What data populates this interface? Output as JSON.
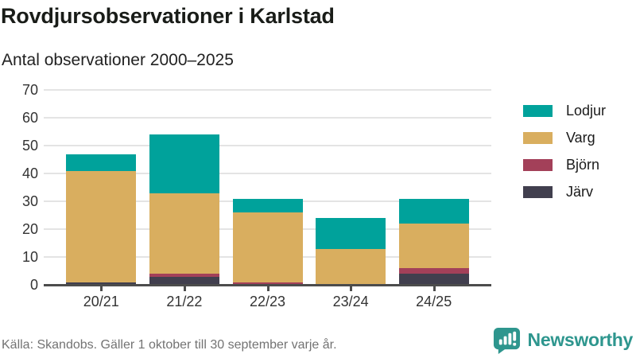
{
  "header": {
    "title": "Rovdjursobservationer i Karlstad",
    "subtitle": "Antal observationer 2000–2025"
  },
  "chart_data": {
    "type": "bar",
    "stacked": true,
    "title": "Rovdjursobservationer i Karlstad",
    "subtitle": "Antal observationer 2000–2025",
    "categories": [
      "20/21",
      "21/22",
      "22/23",
      "23/24",
      "24/25"
    ],
    "series": [
      {
        "name": "Järv",
        "color": "#413f4e",
        "values": [
          1,
          3,
          0,
          0,
          4
        ]
      },
      {
        "name": "Björn",
        "color": "#a34059",
        "values": [
          0,
          1,
          1,
          0,
          2
        ]
      },
      {
        "name": "Varg",
        "color": "#d9ae5f",
        "values": [
          40,
          29,
          25,
          13,
          16
        ]
      },
      {
        "name": "Lodjur",
        "color": "#00a29b",
        "values": [
          6,
          21,
          5,
          11,
          9
        ]
      }
    ],
    "totals": [
      47,
      54,
      31,
      24,
      31
    ],
    "legend_order": [
      "Lodjur",
      "Varg",
      "Björn",
      "Järv"
    ],
    "legend_position": "right",
    "yticks": [
      0,
      10,
      20,
      30,
      40,
      50,
      60,
      70
    ],
    "ylim": [
      0,
      70
    ],
    "xlabel": "",
    "ylabel": "",
    "grid": true
  },
  "footer": {
    "source": "Källa: Skandobs. Gäller 1 oktober till 30 september varje år.",
    "brand": "Newsworthy",
    "brand_color": "#2e968e"
  }
}
